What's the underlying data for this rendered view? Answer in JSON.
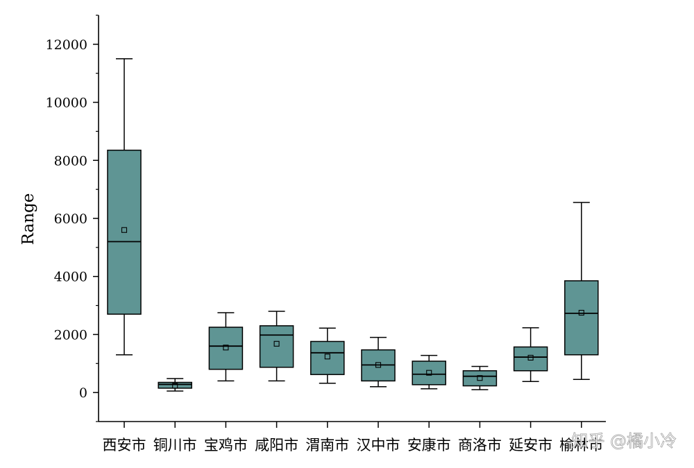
{
  "chart_data": {
    "type": "box",
    "title": "",
    "xlabel": "",
    "ylabel": "Range",
    "ylim": [
      -1000,
      13000
    ],
    "yticks": [
      0,
      2000,
      4000,
      6000,
      8000,
      10000,
      12000
    ],
    "box_color": "#5f9594",
    "categories": [
      "西安市",
      "铜川市",
      "宝鸡市",
      "咸阳市",
      "渭南市",
      "汉中市",
      "安康市",
      "商洛市",
      "延安市",
      "榆林市"
    ],
    "boxes": [
      {
        "category": "西安市",
        "whisker_low": 1300,
        "q1": 2700,
        "median": 5200,
        "q3": 8350,
        "whisker_high": 11500,
        "mean": 5600
      },
      {
        "category": "铜川市",
        "whisker_low": 50,
        "q1": 150,
        "median": 280,
        "q3": 350,
        "whisker_high": 480,
        "mean": 230
      },
      {
        "category": "宝鸡市",
        "whisker_low": 400,
        "q1": 800,
        "median": 1600,
        "q3": 2250,
        "whisker_high": 2750,
        "mean": 1550
      },
      {
        "category": "咸阳市",
        "whisker_low": 400,
        "q1": 870,
        "median": 1980,
        "q3": 2300,
        "whisker_high": 2800,
        "mean": 1680
      },
      {
        "category": "渭南市",
        "whisker_low": 320,
        "q1": 620,
        "median": 1370,
        "q3": 1760,
        "whisker_high": 2220,
        "mean": 1240
      },
      {
        "category": "汉中市",
        "whisker_low": 200,
        "q1": 400,
        "median": 950,
        "q3": 1470,
        "whisker_high": 1900,
        "mean": 950
      },
      {
        "category": "安康市",
        "whisker_low": 130,
        "q1": 270,
        "median": 630,
        "q3": 1080,
        "whisker_high": 1280,
        "mean": 680
      },
      {
        "category": "商洛市",
        "whisker_low": 100,
        "q1": 230,
        "median": 560,
        "q3": 750,
        "whisker_high": 900,
        "mean": 500
      },
      {
        "category": "延安市",
        "whisker_low": 380,
        "q1": 750,
        "median": 1220,
        "q3": 1570,
        "whisker_high": 2230,
        "mean": 1200
      },
      {
        "category": "榆林市",
        "whisker_low": 450,
        "q1": 1300,
        "median": 2730,
        "q3": 3850,
        "whisker_high": 6550,
        "mean": 2750
      }
    ]
  },
  "watermark": "知乎 @橘小冷"
}
